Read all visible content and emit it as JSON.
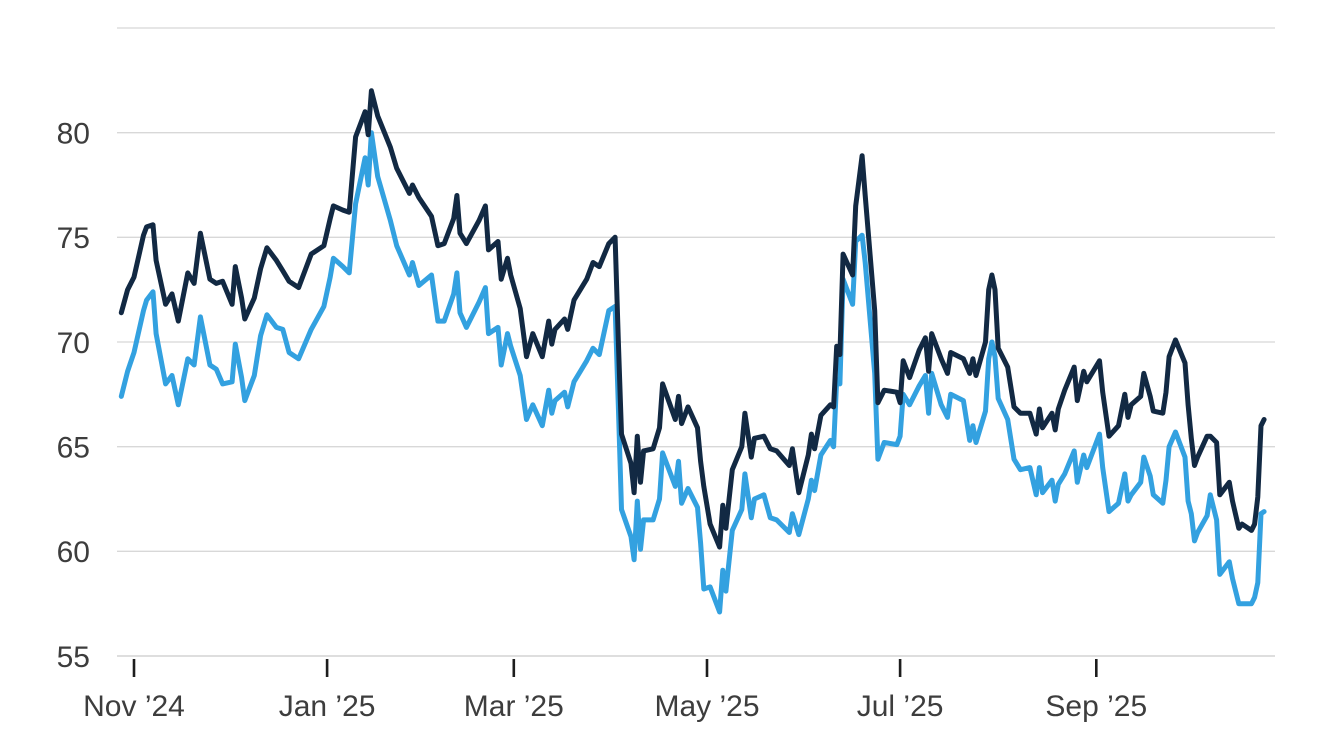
{
  "chart_data": {
    "type": "line",
    "title": "",
    "background": "#ffffff",
    "legend": "none",
    "grid": "horizontal-only",
    "y_axis": {
      "min": 55,
      "max": 85,
      "tick_labels": [
        "55",
        "60",
        "65",
        "70",
        "75",
        "80"
      ],
      "tick_values": [
        55,
        60,
        65,
        70,
        75,
        80
      ],
      "gridline_values": [
        55,
        60,
        65,
        70,
        75,
        80,
        85
      ],
      "grid_color": "#d8d8d8",
      "axis_line_color": "#c9c9c9",
      "label_color": "#3d3d3d"
    },
    "x_axis": {
      "tick_mark_color": "#1d1d1d",
      "label_color": "#3d3d3d",
      "ticks": [
        {
          "label": "Nov ’24",
          "day": 4
        },
        {
          "label": "Jan ’25",
          "day": 65
        },
        {
          "label": "Mar ’25",
          "day": 124
        },
        {
          "label": "May ’25",
          "day": 185
        },
        {
          "label": "Jul ’25",
          "day": 246
        },
        {
          "label": "Sep ’25",
          "day": 308
        }
      ]
    },
    "x_days": [
      0,
      2,
      4,
      7,
      8,
      10,
      11,
      14,
      16,
      18,
      21,
      23,
      25,
      28,
      30,
      32,
      35,
      36,
      38,
      39,
      42,
      44,
      46,
      49,
      51,
      53,
      56,
      60,
      64,
      66,
      67,
      70,
      72,
      74,
      77,
      78,
      79,
      81,
      85,
      87,
      91,
      92,
      94,
      98,
      100,
      102,
      105,
      106,
      107,
      109,
      113,
      115,
      116,
      119,
      120,
      122,
      123,
      126,
      128,
      130,
      133,
      135,
      136,
      137,
      140,
      141,
      143,
      147,
      149,
      151,
      154,
      156,
      157,
      158,
      161,
      162,
      163,
      164,
      165,
      168,
      170,
      171,
      175,
      176,
      177,
      179,
      182,
      183,
      184,
      186,
      189,
      190,
      191,
      193,
      196,
      197,
      199,
      200,
      203,
      205,
      207,
      211,
      212,
      214,
      217,
      218,
      219,
      221,
      224,
      225,
      226,
      227,
      228,
      231,
      232,
      234,
      235,
      238,
      239,
      241,
      245,
      246,
      247,
      249,
      252,
      254,
      255,
      256,
      259,
      261,
      262,
      266,
      268,
      269,
      270,
      273,
      274,
      275,
      276,
      277,
      280,
      282,
      284,
      287,
      289,
      290,
      291,
      294,
      295,
      296,
      298,
      301,
      302,
      304,
      305,
      309,
      310,
      312,
      315,
      317,
      318,
      319,
      322,
      323,
      325,
      326,
      329,
      330,
      331,
      333,
      336,
      337,
      338,
      339,
      340,
      343,
      344,
      346,
      347,
      350,
      351,
      353,
      354,
      357,
      358,
      359,
      360,
      361
    ],
    "series": [
      {
        "id": "light-blue-line",
        "color": "#33a1e0",
        "values": [
          67.4,
          68.6,
          69.5,
          71.5,
          72.0,
          72.4,
          70.4,
          68.0,
          68.4,
          67.0,
          69.2,
          68.9,
          71.2,
          68.9,
          68.7,
          68.0,
          68.1,
          69.9,
          68.3,
          67.2,
          68.4,
          70.3,
          71.3,
          70.7,
          70.6,
          69.5,
          69.2,
          70.6,
          71.7,
          73.1,
          74.0,
          73.6,
          73.3,
          76.6,
          78.8,
          77.5,
          80.0,
          77.9,
          75.8,
          74.6,
          73.2,
          73.8,
          72.7,
          73.2,
          71.0,
          71.0,
          72.3,
          73.3,
          71.4,
          70.7,
          71.9,
          72.6,
          70.4,
          70.7,
          68.9,
          70.4,
          69.8,
          68.4,
          66.3,
          67.0,
          66.0,
          67.7,
          66.6,
          67.2,
          67.6,
          66.9,
          68.1,
          69.1,
          69.7,
          69.4,
          71.5,
          71.7,
          67.0,
          62.0,
          60.7,
          59.6,
          62.4,
          60.1,
          61.5,
          61.5,
          62.5,
          64.7,
          63.1,
          64.3,
          62.3,
          63.0,
          62.1,
          60.4,
          58.2,
          58.3,
          57.1,
          59.1,
          58.1,
          61.0,
          62.0,
          63.7,
          61.6,
          62.5,
          62.7,
          61.6,
          61.5,
          60.9,
          61.8,
          60.8,
          62.5,
          63.4,
          62.9,
          64.6,
          65.3,
          65.0,
          68.2,
          68.0,
          73.0,
          71.8,
          74.8,
          75.1,
          73.8,
          68.5,
          64.4,
          65.2,
          65.1,
          65.5,
          67.5,
          67.0,
          67.9,
          68.4,
          66.6,
          68.5,
          67.0,
          66.4,
          67.5,
          67.2,
          65.3,
          66.0,
          65.2,
          66.7,
          69.2,
          70.0,
          69.3,
          67.3,
          66.3,
          64.4,
          63.9,
          64.0,
          62.7,
          64.0,
          62.8,
          63.4,
          62.4,
          63.2,
          63.7,
          64.8,
          63.3,
          64.6,
          64.0,
          65.6,
          64.0,
          61.9,
          62.3,
          63.7,
          62.4,
          62.7,
          63.3,
          64.5,
          63.6,
          62.7,
          62.3,
          63.4,
          65.0,
          65.7,
          64.5,
          62.4,
          61.8,
          60.5,
          60.9,
          61.7,
          62.7,
          61.5,
          58.9,
          59.5,
          58.7,
          57.5,
          57.5,
          57.5,
          57.8,
          58.5,
          61.8,
          61.9
        ]
      },
      {
        "id": "dark-navy-line",
        "color": "#122943",
        "values": [
          71.4,
          72.5,
          73.1,
          75.1,
          75.5,
          75.6,
          73.9,
          71.8,
          72.3,
          71.0,
          73.3,
          72.8,
          75.2,
          73.0,
          72.8,
          72.9,
          71.8,
          73.6,
          72.1,
          71.1,
          72.1,
          73.5,
          74.5,
          73.9,
          73.4,
          72.9,
          72.6,
          74.2,
          74.6,
          75.9,
          76.5,
          76.3,
          76.2,
          79.8,
          81.0,
          79.9,
          82.0,
          80.8,
          79.3,
          78.3,
          77.1,
          77.5,
          76.9,
          76.0,
          74.6,
          74.7,
          75.9,
          77.0,
          75.2,
          74.7,
          75.8,
          76.5,
          74.4,
          74.8,
          73.0,
          74.0,
          73.2,
          71.6,
          69.3,
          70.4,
          69.3,
          71.0,
          69.9,
          70.6,
          71.1,
          70.6,
          72.0,
          73.0,
          73.8,
          73.6,
          74.7,
          75.0,
          70.1,
          65.6,
          64.2,
          62.8,
          65.5,
          63.3,
          64.8,
          64.9,
          65.9,
          68.0,
          66.3,
          67.4,
          66.1,
          66.9,
          65.9,
          64.3,
          63.1,
          61.3,
          60.2,
          62.2,
          61.1,
          63.9,
          65.0,
          66.6,
          64.5,
          65.4,
          65.5,
          64.9,
          64.8,
          64.1,
          64.9,
          62.8,
          64.6,
          65.6,
          64.9,
          66.5,
          67.0,
          66.9,
          69.8,
          69.4,
          74.2,
          73.2,
          76.5,
          78.9,
          77.0,
          71.5,
          67.1,
          67.7,
          67.6,
          67.1,
          69.1,
          68.3,
          69.6,
          70.2,
          68.6,
          70.4,
          69.2,
          68.5,
          69.5,
          69.2,
          68.5,
          69.2,
          68.4,
          70.0,
          72.5,
          73.2,
          72.5,
          69.7,
          68.8,
          66.9,
          66.6,
          66.6,
          65.6,
          66.8,
          65.9,
          66.6,
          65.8,
          66.8,
          67.7,
          68.8,
          67.2,
          68.6,
          68.1,
          69.1,
          67.6,
          65.5,
          66.0,
          67.5,
          66.4,
          67.0,
          67.4,
          68.5,
          67.4,
          66.7,
          66.6,
          67.6,
          69.3,
          70.1,
          69.0,
          67.0,
          65.4,
          64.1,
          64.5,
          65.5,
          65.5,
          65.2,
          62.7,
          63.3,
          62.4,
          61.1,
          61.3,
          61.0,
          61.3,
          62.6,
          66.0,
          66.3
        ]
      }
    ]
  }
}
